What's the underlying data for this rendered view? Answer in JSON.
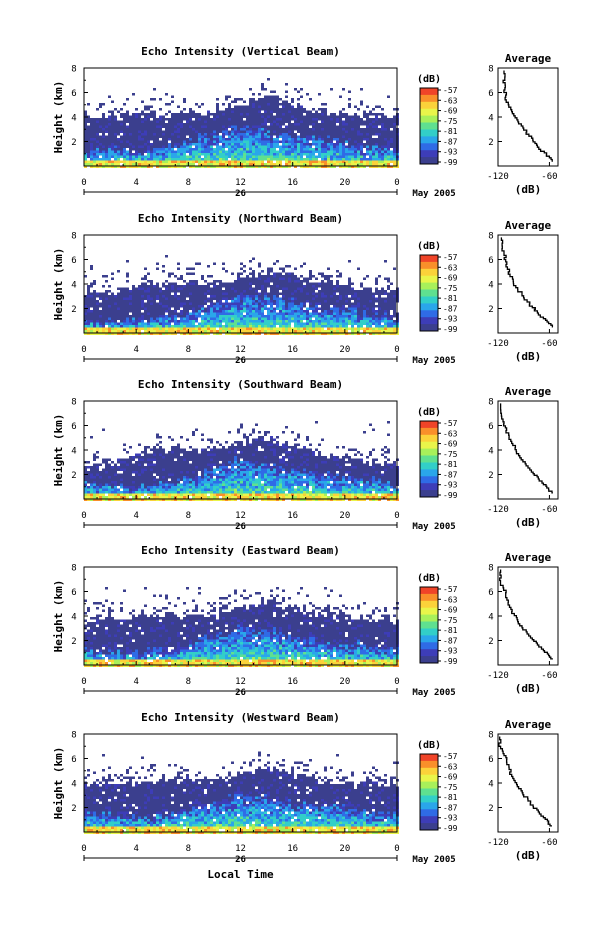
{
  "figure": {
    "xlabel": "Local Time",
    "date_label": "May 2005",
    "day_label": "26",
    "colorbar_unit": "(dB)",
    "colorbar_ticks": [
      "-57",
      "-63",
      "-69",
      "-75",
      "-81",
      "-87",
      "-93",
      "-99"
    ],
    "colorbar_colors": [
      "#f04428",
      "#f98f2a",
      "#fbd23a",
      "#e9f54a",
      "#a8f05a",
      "#5fe090",
      "#32cfc8",
      "#2aa6ea",
      "#2f6be6",
      "#3d3db8",
      "#3b3f8e"
    ]
  },
  "chart_data": [
    {
      "type": "heatmap",
      "title": "Echo Intensity (Vertical Beam)",
      "ylabel": "Height (km)",
      "xlim": [
        0,
        24
      ],
      "ylim": [
        0,
        8
      ],
      "xticks": [
        "0",
        "4",
        "8",
        "12",
        "16",
        "20",
        "0"
      ],
      "yticks": [
        "2",
        "4",
        "6",
        "8"
      ],
      "cloud_top_km": [
        4.0,
        4.0,
        4.1,
        4.2,
        4.3,
        4.5,
        4.9,
        5.6,
        5.0,
        4.3,
        4.1,
        4.0,
        4.0
      ],
      "bright_layer_km": [
        1.4,
        1.6,
        1.2,
        1.6,
        2.2,
        2.8,
        3.3,
        3.0,
        2.5,
        2.2,
        2.0,
        1.6,
        1.5
      ]
    },
    {
      "type": "heatmap",
      "title": "Echo Intensity (Northward Beam)",
      "ylabel": "Height (km)",
      "xlim": [
        0,
        24
      ],
      "ylim": [
        0,
        8
      ],
      "xticks": [
        "0",
        "4",
        "8",
        "12",
        "16",
        "20",
        "0"
      ],
      "yticks": [
        "2",
        "4",
        "6",
        "8"
      ],
      "cloud_top_km": [
        3.3,
        3.3,
        3.8,
        4.0,
        4.0,
        4.0,
        4.6,
        5.0,
        4.6,
        4.2,
        3.9,
        3.6,
        3.3
      ],
      "bright_layer_km": [
        1.0,
        1.0,
        1.1,
        1.3,
        1.8,
        2.4,
        3.2,
        3.0,
        2.5,
        2.2,
        2.0,
        1.5,
        1.2
      ]
    },
    {
      "type": "heatmap",
      "title": "Echo Intensity (Southward Beam)",
      "ylabel": "Height (km)",
      "xlim": [
        0,
        24
      ],
      "ylim": [
        0,
        8
      ],
      "xticks": [
        "0",
        "4",
        "8",
        "12",
        "16",
        "20",
        "0"
      ],
      "yticks": [
        "2",
        "4",
        "6",
        "8"
      ],
      "cloud_top_km": [
        2.6,
        2.8,
        3.6,
        3.9,
        4.0,
        4.0,
        4.6,
        4.9,
        4.4,
        3.6,
        3.2,
        3.0,
        2.8
      ],
      "bright_layer_km": [
        1.3,
        1.1,
        1.0,
        1.3,
        1.8,
        2.6,
        3.4,
        3.0,
        2.4,
        2.1,
        1.8,
        1.5,
        1.3
      ]
    },
    {
      "type": "heatmap",
      "title": "Echo Intensity (Eastward Beam)",
      "ylabel": "Height (km)",
      "xlim": [
        0,
        24
      ],
      "ylim": [
        0,
        8
      ],
      "xticks": [
        "0",
        "4",
        "8",
        "12",
        "16",
        "20",
        "0"
      ],
      "yticks": [
        "2",
        "4",
        "6",
        "8"
      ],
      "cloud_top_km": [
        3.6,
        3.8,
        3.9,
        4.0,
        4.0,
        4.0,
        4.7,
        5.1,
        4.5,
        4.1,
        3.9,
        3.7,
        3.6
      ],
      "bright_layer_km": [
        1.2,
        1.1,
        1.1,
        1.3,
        1.8,
        2.4,
        3.2,
        3.0,
        2.4,
        2.1,
        1.9,
        1.5,
        1.3
      ]
    },
    {
      "type": "heatmap",
      "title": "Echo Intensity (Westward Beam)",
      "ylabel": "Height (km)",
      "xlim": [
        0,
        24
      ],
      "ylim": [
        0,
        8
      ],
      "xticks": [
        "0",
        "4",
        "8",
        "12",
        "16",
        "20",
        "0"
      ],
      "yticks": [
        "2",
        "4",
        "6",
        "8"
      ],
      "cloud_top_km": [
        3.8,
        3.9,
        4.0,
        4.1,
        4.2,
        4.3,
        4.6,
        5.2,
        4.6,
        4.2,
        4.0,
        3.9,
        3.8
      ],
      "bright_layer_km": [
        1.4,
        1.5,
        1.2,
        1.4,
        2.0,
        2.6,
        3.3,
        3.0,
        2.4,
        2.2,
        2.0,
        1.6,
        1.4
      ]
    },
    {
      "type": "line",
      "title": "Average",
      "xlabel": "(dB)",
      "xlim": [
        -120,
        -50
      ],
      "ylim": [
        0,
        8
      ],
      "xticks": [
        "-120",
        "-60"
      ],
      "yticks": [
        "2",
        "4",
        "6",
        "8"
      ],
      "x": [
        -113,
        -114,
        -112,
        -111,
        -108,
        -104,
        -100,
        -96,
        -90,
        -84,
        -79,
        -74,
        -66,
        -60,
        -56
      ],
      "y": [
        7.8,
        7.0,
        6.4,
        5.8,
        5.2,
        4.6,
        4.1,
        3.6,
        3.1,
        2.6,
        2.1,
        1.7,
        1.2,
        0.8,
        0.4
      ]
    },
    {
      "type": "line",
      "title": "Average",
      "xlabel": "(dB)",
      "xlim": [
        -120,
        -50
      ],
      "ylim": [
        0,
        8
      ],
      "xticks": [
        "-120",
        "-60"
      ],
      "yticks": [
        "2",
        "4",
        "6",
        "8"
      ],
      "x": [
        -116,
        -115,
        -113,
        -111,
        -109,
        -106,
        -102,
        -97,
        -92,
        -86,
        -80,
        -74,
        -67,
        -61,
        -56
      ],
      "y": [
        7.8,
        7.1,
        6.5,
        6.0,
        5.4,
        4.8,
        4.2,
        3.7,
        3.2,
        2.7,
        2.2,
        1.8,
        1.3,
        0.9,
        0.5
      ]
    },
    {
      "type": "line",
      "title": "Average",
      "xlabel": "(dB)",
      "xlim": [
        -120,
        -50
      ],
      "ylim": [
        0,
        8
      ],
      "xticks": [
        "-120",
        "-60"
      ],
      "yticks": [
        "2",
        "4",
        "6",
        "8"
      ],
      "x": [
        -117,
        -116,
        -113,
        -110,
        -107,
        -104,
        -100,
        -96,
        -91,
        -85,
        -79,
        -73,
        -67,
        -61,
        -56
      ],
      "y": [
        7.8,
        7.0,
        6.3,
        5.8,
        5.2,
        4.7,
        4.2,
        3.7,
        3.2,
        2.7,
        2.2,
        1.8,
        1.3,
        0.9,
        0.5
      ]
    },
    {
      "type": "line",
      "title": "Average",
      "xlabel": "(dB)",
      "xlim": [
        -120,
        -50
      ],
      "ylim": [
        0,
        8
      ],
      "xticks": [
        "-120",
        "-60"
      ],
      "yticks": [
        "2",
        "4",
        "6",
        "8"
      ],
      "x": [
        -117,
        -118,
        -114,
        -111,
        -108,
        -105,
        -101,
        -97,
        -92,
        -86,
        -80,
        -74,
        -67,
        -61,
        -56
      ],
      "y": [
        7.8,
        7.1,
        6.5,
        5.9,
        5.3,
        4.7,
        4.2,
        3.7,
        3.2,
        2.7,
        2.2,
        1.8,
        1.3,
        0.9,
        0.5
      ]
    },
    {
      "type": "line",
      "title": "Average",
      "xlabel": "(dB)",
      "xlim": [
        -120,
        -50
      ],
      "ylim": [
        0,
        8
      ],
      "xticks": [
        "-120",
        "-60"
      ],
      "yticks": [
        "2",
        "4",
        "6",
        "8"
      ],
      "x": [
        -118,
        -117,
        -113,
        -110,
        -107,
        -104,
        -100,
        -96,
        -91,
        -85,
        -79,
        -73,
        -67,
        -61,
        -57
      ],
      "y": [
        7.8,
        7.0,
        6.4,
        5.9,
        5.3,
        4.7,
        4.2,
        3.7,
        3.2,
        2.7,
        2.2,
        1.8,
        1.3,
        0.9,
        0.5
      ]
    }
  ]
}
